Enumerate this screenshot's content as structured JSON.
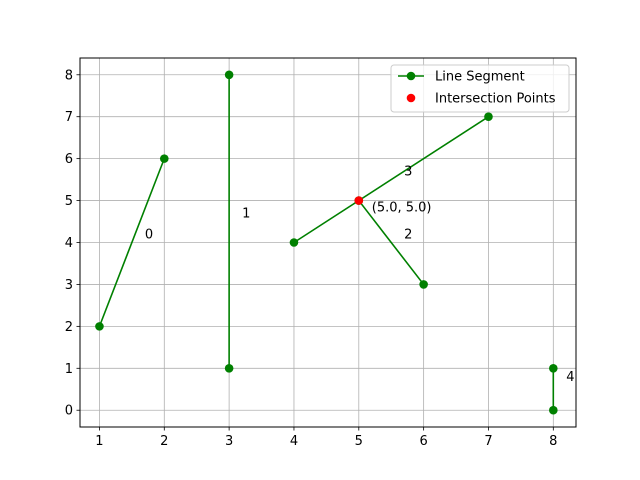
{
  "chart_data": {
    "type": "line",
    "xlim": [
      0.7,
      8.35
    ],
    "ylim": [
      -0.4,
      8.4
    ],
    "x_ticks": [
      1,
      2,
      3,
      4,
      5,
      6,
      7,
      8
    ],
    "y_ticks": [
      0,
      1,
      2,
      3,
      4,
      5,
      6,
      7,
      8
    ],
    "grid": true,
    "legend_position": "upper right",
    "segments": [
      {
        "id": "0",
        "points": [
          [
            1,
            2
          ],
          [
            2,
            6
          ]
        ]
      },
      {
        "id": "1",
        "points": [
          [
            3,
            1
          ],
          [
            3,
            8
          ]
        ]
      },
      {
        "id": "2",
        "points": [
          [
            5,
            5
          ],
          [
            6,
            3
          ]
        ]
      },
      {
        "id": "3",
        "points": [
          [
            4,
            4
          ],
          [
            7,
            7
          ]
        ]
      },
      {
        "id": "4",
        "points": [
          [
            8,
            0
          ],
          [
            8,
            1
          ]
        ]
      }
    ],
    "segment_labels": [
      {
        "text": "0",
        "x": 1.7,
        "y": 4.2
      },
      {
        "text": "1",
        "x": 3.2,
        "y": 4.7
      },
      {
        "text": "2",
        "x": 5.7,
        "y": 4.2
      },
      {
        "text": "3",
        "x": 5.7,
        "y": 5.7
      },
      {
        "text": "4",
        "x": 8.2,
        "y": 0.8
      }
    ],
    "intersections": [
      {
        "x": 5.0,
        "y": 5.0,
        "label": "(5.0, 5.0)",
        "label_x": 5.2,
        "label_y": 4.85
      }
    ],
    "series": [
      {
        "name": "Line Segment",
        "color": "#008000",
        "marker": "circle"
      },
      {
        "name": "Intersection Points",
        "color": "#ff0000",
        "marker": "circle"
      }
    ]
  }
}
